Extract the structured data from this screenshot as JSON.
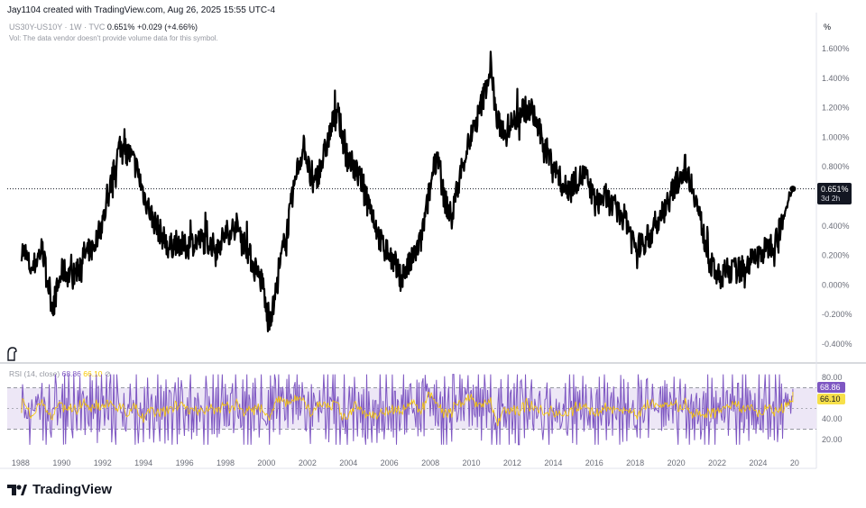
{
  "header": {
    "credit": "Jay1104 created with TradingView.com, Aug 26, 2025 15:55 UTC-4"
  },
  "legend": {
    "symbol": "US30Y-US10Y · 1W · TVC",
    "last": "0.651%",
    "change": "+0.029 (+4.66%)",
    "volume_note": "Vol: The data vendor doesn't provide volume data for this symbol."
  },
  "rsi_legend": {
    "label": "RSI (14, close)",
    "rsi_value": "68.86",
    "ma_value": "66.10"
  },
  "price_badge": {
    "value": "0.651%",
    "countdown": "3d 2h"
  },
  "brand": {
    "name": "TradingView"
  },
  "colors": {
    "line": "#000000",
    "rsi": "#7e57c2",
    "rsi_ma": "#f7c600",
    "band": "#ede7f6"
  },
  "chart_data": [
    {
      "type": "line",
      "title": "",
      "unit": "%",
      "xlabel": "",
      "ylabel": "",
      "x_ticks": [
        "1988",
        "1990",
        "1992",
        "1994",
        "1996",
        "1998",
        "2000",
        "2002",
        "2004",
        "2006",
        "2008",
        "2010",
        "2012",
        "2014",
        "2016",
        "2018",
        "2020",
        "2022",
        "2024",
        "20"
      ],
      "y_ticks": [
        "1.600%",
        "1.400%",
        "1.200%",
        "1.000%",
        "0.800%",
        "0.600%",
        "0.400%",
        "0.200%",
        "0.000%",
        "-0.200%",
        "-0.400%"
      ],
      "ylim": [
        -0.4,
        1.6
      ],
      "xlim": [
        1987.3,
        2026.8
      ],
      "last_value": 0.651,
      "series": [
        {
          "x": [
            1988.0,
            1988.5,
            1989.0,
            1989.5,
            1990.0,
            1990.5,
            1991.0,
            1991.5,
            1992.0,
            1992.4,
            1992.8,
            1993.2,
            1993.6,
            1994.0,
            1994.4,
            1994.8,
            1995.2,
            1995.6,
            1996.0,
            1996.5,
            1997.0,
            1997.5,
            1998.0,
            1998.5,
            1999.0,
            1999.4,
            1999.8,
            2000.0,
            2000.3,
            2000.7,
            2001.0,
            2001.4,
            2001.8,
            2002.2,
            2002.6,
            2003.0,
            2003.4,
            2003.8,
            2004.2,
            2004.6,
            2005.0,
            2005.5,
            2006.0,
            2006.5,
            2007.0,
            2007.5,
            2008.0,
            2008.3,
            2008.6,
            2009.0,
            2009.4,
            2009.8,
            2010.2,
            2010.6,
            2010.9,
            2011.2,
            2011.6,
            2012.0,
            2012.5,
            2013.0,
            2013.5,
            2014.0,
            2014.5,
            2015.0,
            2015.5,
            2016.0,
            2016.5,
            2017.0,
            2017.5,
            2018.0,
            2018.5,
            2019.0,
            2019.5,
            2020.0,
            2020.4,
            2020.8,
            2021.2,
            2021.6,
            2022.0,
            2022.5,
            2023.0,
            2023.5,
            2024.0,
            2024.4,
            2024.8,
            2025.2,
            2025.5,
            2025.65
          ],
          "y": [
            0.25,
            0.1,
            0.25,
            -0.15,
            0.1,
            0.05,
            0.2,
            0.25,
            0.45,
            0.7,
            0.95,
            0.9,
            0.8,
            0.6,
            0.45,
            0.35,
            0.25,
            0.3,
            0.25,
            0.3,
            0.3,
            0.25,
            0.35,
            0.4,
            0.25,
            0.1,
            0.0,
            -0.25,
            -0.15,
            0.2,
            0.4,
            0.75,
            0.95,
            0.65,
            0.8,
            1.0,
            1.2,
            0.9,
            0.8,
            0.7,
            0.55,
            0.3,
            0.2,
            0.05,
            0.15,
            0.3,
            0.7,
            0.9,
            0.6,
            0.45,
            0.75,
            0.95,
            1.1,
            1.3,
            1.5,
            1.1,
            1.05,
            1.1,
            1.2,
            1.15,
            0.95,
            0.8,
            0.65,
            0.7,
            0.75,
            0.55,
            0.6,
            0.5,
            0.45,
            0.25,
            0.3,
            0.4,
            0.55,
            0.7,
            0.8,
            0.65,
            0.4,
            0.15,
            0.05,
            0.1,
            0.1,
            0.15,
            0.2,
            0.25,
            0.3,
            0.45,
            0.6,
            0.651
          ]
        }
      ]
    },
    {
      "type": "line",
      "title": "",
      "series_labels": [
        "RSI (14, close)"
      ],
      "y_ticks": [
        "80.00",
        "60.00",
        "40.00",
        "20.00"
      ],
      "ylim": [
        15,
        85
      ],
      "band": [
        30,
        70
      ],
      "last_rsi": 68.86,
      "last_ma": 66.1
    }
  ]
}
